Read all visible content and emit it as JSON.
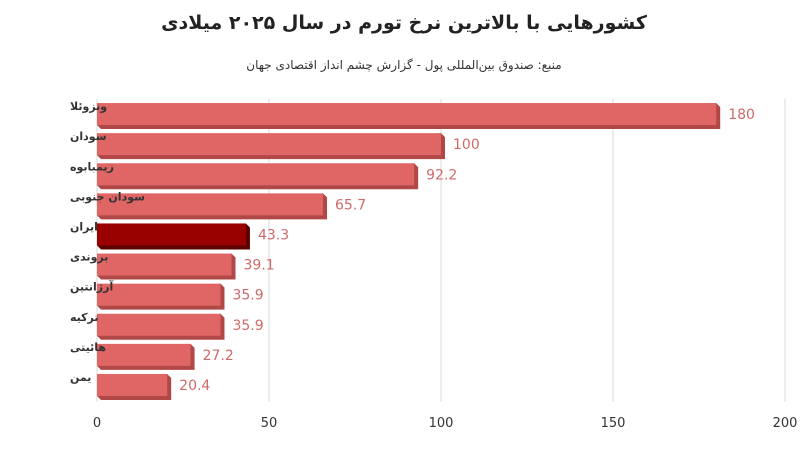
{
  "title": "کشورهایی با بالاترین نرخ تورم در سال ۲۰۲۵ میلادی",
  "subtitle": "منبع: صندوق بین‌المللی پول - گزارش چشم انداز اقتصادی جهان",
  "chart_data": {
    "type": "bar",
    "orientation": "horizontal",
    "title": "کشورهایی با بالاترین نرخ تورم در سال ۲۰۲۵ میلادی",
    "subtitle": "منبع: صندوق بین‌المللی پول - گزارش چشم انداز اقتصادی جهان",
    "categories": [
      "ونزوئلا",
      "سودان",
      "زیمبابوه",
      "سودان جنوبی",
      "ایران",
      "بروندی",
      "آرژانتین",
      "ترکیه",
      "هائیتی",
      "یمن"
    ],
    "values": [
      180,
      100,
      92.2,
      65.7,
      43.3,
      39.1,
      35.9,
      35.9,
      27.2,
      20.4
    ],
    "value_labels": [
      "180",
      "100",
      "92.2",
      "65.7",
      "43.3",
      "39.1",
      "35.9",
      "35.9",
      "27.2",
      "20.4"
    ],
    "highlight": "ایران",
    "xlim": [
      0,
      200
    ],
    "xticks": [
      0,
      50,
      100,
      150,
      200
    ],
    "grid": true,
    "colors": {
      "bar": "#e06666",
      "bar_dark": "#b04848",
      "highlight": "#990000",
      "highlight_dark": "#5c0000",
      "label": "#d06a6a",
      "grid": "#d9d9d9"
    }
  }
}
